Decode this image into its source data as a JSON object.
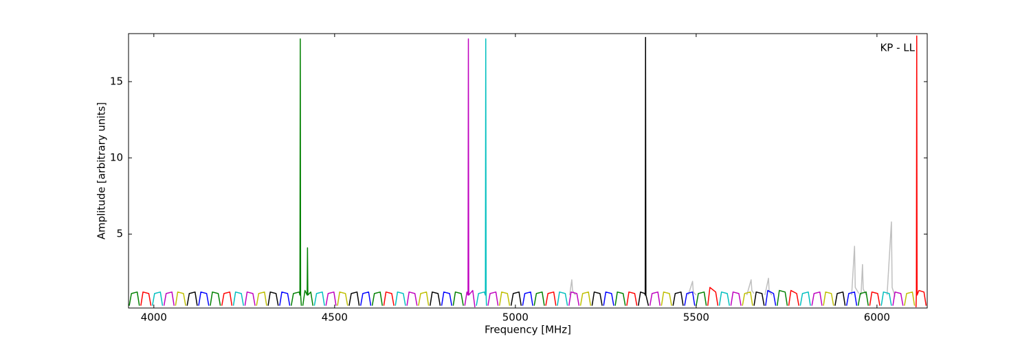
{
  "chart_data": {
    "type": "line",
    "xlabel": "Frequency [MHz]",
    "ylabel": "Amplitude [arbitrary units]",
    "annotation": "KP - LL",
    "xlim": [
      3930,
      6139
    ],
    "ylim": [
      0.15,
      18.15
    ],
    "xticks": [
      4000,
      4500,
      5000,
      5500,
      6000
    ],
    "yticks": [
      5,
      10,
      15
    ],
    "series": [
      {
        "color": "#bfbfbf",
        "x": [
          5150,
          5156,
          5158,
          5166,
          null,
          5478,
          5490,
          5492,
          5500,
          null,
          5640,
          5652,
          5654,
          5660,
          null,
          5690,
          5700,
          5702,
          5710,
          null,
          5930,
          5938,
          5940,
          5950,
          null,
          5956,
          5960,
          5962,
          5970,
          null,
          6028,
          6040,
          6042,
          6050
        ],
        "values": [
          1.0,
          2.0,
          1.3,
          1.0,
          null,
          1.0,
          1.9,
          1.2,
          1.0,
          null,
          1.0,
          2.0,
          1.3,
          1.1,
          null,
          1.0,
          2.1,
          1.2,
          1.0,
          null,
          1.0,
          4.2,
          1.5,
          1.1,
          null,
          1.0,
          3.0,
          1.4,
          1.0,
          null,
          1.0,
          5.8,
          1.5,
          0.9
        ]
      },
      {
        "color": "#0000ff",
        "x": [
          4124,
          4130,
          4146,
          4152,
          null,
          4348,
          4354,
          4370,
          4376,
          null,
          4572,
          4578,
          4594,
          4600,
          null,
          4796,
          4802,
          4818,
          4824,
          null,
          5020,
          5026,
          5042,
          5048,
          null,
          5244,
          5250,
          5266,
          5272,
          null,
          5468,
          5474,
          5490,
          5496,
          null,
          5692,
          5698,
          5714,
          5720,
          null,
          5916,
          5922,
          5938,
          5944
        ],
        "values": [
          0.3,
          1.2,
          1.1,
          0.3,
          null,
          0.3,
          1.2,
          1.1,
          0.3,
          null,
          0.3,
          1.1,
          1.2,
          0.3,
          null,
          0.3,
          1.2,
          1.1,
          0.3,
          null,
          0.3,
          1.1,
          1.2,
          0.3,
          null,
          0.3,
          1.2,
          1.1,
          0.3,
          null,
          0.3,
          1.1,
          1.2,
          0.3,
          null,
          0.3,
          1.3,
          1.1,
          0.3,
          null,
          0.3,
          1.1,
          1.2,
          0.3
        ]
      },
      {
        "color": "#008000",
        "x": [
          3932,
          3938,
          3954,
          3960,
          null,
          4156,
          4162,
          4178,
          4184,
          null,
          4380,
          4386,
          4402,
          4404,
          4405,
          4406,
          4408,
          null,
          4412,
          4418,
          4424,
          4425,
          4426,
          4434,
          4440,
          null,
          4604,
          4610,
          4626,
          4632,
          null,
          4828,
          4834,
          4850,
          4856,
          null,
          5052,
          5058,
          5074,
          5080,
          null,
          5276,
          5282,
          5298,
          5304,
          null,
          5500,
          5506,
          5522,
          5528,
          null,
          5724,
          5730,
          5746,
          5752,
          null,
          5948,
          5954,
          5970,
          5976
        ],
        "values": [
          0.3,
          1.1,
          1.2,
          0.3,
          null,
          0.3,
          1.2,
          1.1,
          0.3,
          null,
          0.3,
          1.1,
          1.2,
          1.0,
          17.8,
          1.0,
          0.3,
          null,
          0.3,
          1.3,
          1.0,
          4.1,
          1.0,
          1.2,
          0.3,
          null,
          0.3,
          1.1,
          1.2,
          0.3,
          null,
          0.3,
          1.2,
          1.1,
          0.3,
          null,
          0.3,
          1.1,
          1.2,
          0.3,
          null,
          0.3,
          1.2,
          1.1,
          0.3,
          null,
          0.3,
          1.1,
          1.2,
          0.3,
          null,
          0.3,
          1.3,
          1.2,
          0.3,
          null,
          0.3,
          1.1,
          1.2,
          0.3
        ]
      },
      {
        "color": "#ff0000",
        "x": [
          3964,
          3970,
          3986,
          3992,
          null,
          4188,
          4194,
          4210,
          4216,
          null,
          4636,
          4642,
          4658,
          4664,
          null,
          5084,
          5090,
          5106,
          5112,
          null,
          5308,
          5314,
          5330,
          5336,
          null,
          5532,
          5538,
          5554,
          5560,
          null,
          5756,
          5762,
          5778,
          5784,
          null,
          5980,
          5986,
          6002,
          6008,
          null,
          6108,
          6109,
          6110,
          6111,
          6116,
          6130,
          6136
        ],
        "values": [
          0.3,
          1.2,
          1.1,
          0.3,
          null,
          0.3,
          1.1,
          1.2,
          0.3,
          null,
          0.3,
          1.2,
          1.1,
          0.3,
          null,
          0.3,
          1.1,
          1.2,
          0.3,
          null,
          0.3,
          1.2,
          1.1,
          0.3,
          null,
          0.3,
          1.5,
          1.2,
          0.3,
          null,
          0.3,
          1.3,
          1.1,
          0.3,
          null,
          0.3,
          1.2,
          1.1,
          0.3,
          null,
          0.2,
          1.0,
          18.0,
          1.0,
          1.3,
          1.2,
          0.3
        ]
      },
      {
        "color": "#00bfbf",
        "x": [
          3996,
          4002,
          4018,
          4024,
          null,
          4220,
          4226,
          4242,
          4248,
          null,
          4444,
          4450,
          4466,
          4472,
          null,
          4668,
          4674,
          4690,
          4696,
          null,
          4892,
          4898,
          4914,
          4917,
          4918,
          4919,
          4920,
          null,
          5116,
          5122,
          5138,
          5144,
          null,
          5564,
          5570,
          5586,
          5592,
          null,
          5788,
          5794,
          5810,
          5816,
          null,
          6012,
          6018,
          6034,
          6040
        ],
        "values": [
          0.3,
          1.1,
          1.2,
          0.3,
          null,
          0.3,
          1.2,
          1.1,
          0.3,
          null,
          0.3,
          1.1,
          1.2,
          0.3,
          null,
          0.3,
          1.2,
          1.1,
          0.3,
          null,
          0.3,
          1.1,
          1.2,
          1.0,
          17.8,
          1.0,
          0.3,
          null,
          0.3,
          1.2,
          1.1,
          0.3,
          null,
          0.3,
          1.2,
          1.1,
          0.3,
          null,
          0.3,
          1.1,
          1.2,
          0.3,
          null,
          0.3,
          1.2,
          1.1,
          0.3
        ]
      },
      {
        "color": "#bf00bf",
        "x": [
          4028,
          4034,
          4050,
          4056,
          null,
          4252,
          4258,
          4274,
          4280,
          null,
          4476,
          4482,
          4498,
          4504,
          null,
          4700,
          4706,
          4722,
          4728,
          null,
          4860,
          4866,
          4869,
          4870,
          4871,
          4882,
          4888,
          null,
          4924,
          4930,
          4946,
          4952,
          null,
          5148,
          5154,
          5170,
          5176,
          null,
          5372,
          5378,
          5394,
          5400,
          null,
          5596,
          5602,
          5618,
          5624,
          null,
          5820,
          5826,
          5842,
          5848,
          null,
          6044,
          6050,
          6066,
          6072
        ],
        "values": [
          0.3,
          1.1,
          1.2,
          0.3,
          null,
          0.3,
          1.2,
          1.1,
          0.3,
          null,
          0.3,
          1.1,
          1.2,
          0.3,
          null,
          0.3,
          1.2,
          1.1,
          0.3,
          null,
          0.3,
          1.2,
          1.0,
          17.8,
          1.0,
          1.3,
          0.2,
          null,
          0.3,
          1.1,
          1.2,
          0.3,
          null,
          0.3,
          1.2,
          1.1,
          0.3,
          null,
          0.3,
          1.1,
          1.2,
          0.3,
          null,
          0.3,
          1.2,
          1.1,
          0.3,
          null,
          0.3,
          1.1,
          1.2,
          0.3,
          null,
          0.3,
          1.2,
          1.1,
          0.3
        ]
      },
      {
        "color": "#bfbf00",
        "x": [
          4060,
          4066,
          4082,
          4088,
          null,
          4284,
          4290,
          4306,
          4312,
          null,
          4508,
          4514,
          4530,
          4536,
          null,
          4732,
          4738,
          4754,
          4760,
          null,
          4956,
          4962,
          4978,
          4984,
          null,
          5180,
          5186,
          5202,
          5208,
          null,
          5404,
          5410,
          5426,
          5432,
          null,
          5628,
          5634,
          5650,
          5656,
          null,
          5852,
          5858,
          5874,
          5880,
          null,
          6076,
          6082,
          6098,
          6104
        ],
        "values": [
          0.3,
          1.2,
          1.1,
          0.3,
          null,
          0.3,
          1.1,
          1.2,
          0.3,
          null,
          0.3,
          1.2,
          1.1,
          0.3,
          null,
          0.3,
          1.1,
          1.2,
          0.3,
          null,
          0.3,
          1.2,
          1.1,
          0.3,
          null,
          0.3,
          1.1,
          1.2,
          0.3,
          null,
          0.3,
          1.2,
          1.1,
          0.3,
          null,
          0.3,
          1.1,
          1.2,
          0.3,
          null,
          0.3,
          1.2,
          1.1,
          0.3,
          null,
          0.3,
          1.1,
          1.2,
          0.3
        ]
      },
      {
        "color": "#000000",
        "x": [
          4092,
          4098,
          4114,
          4120,
          null,
          4316,
          4322,
          4338,
          4344,
          null,
          4540,
          4546,
          4562,
          4568,
          null,
          4764,
          4770,
          4786,
          4792,
          null,
          4988,
          4994,
          5010,
          5016,
          null,
          5212,
          5218,
          5234,
          5240,
          null,
          5340,
          5346,
          5358,
          5359,
          5360,
          5361,
          5368,
          null,
          5436,
          5442,
          5458,
          5464,
          null,
          5660,
          5666,
          5682,
          5688,
          null,
          5884,
          5890,
          5906,
          5912
        ],
        "values": [
          0.3,
          1.1,
          1.2,
          0.3,
          null,
          0.3,
          1.2,
          1.1,
          0.3,
          null,
          0.3,
          1.1,
          1.2,
          0.3,
          null,
          0.3,
          1.2,
          1.1,
          0.3,
          null,
          0.3,
          1.1,
          1.2,
          0.3,
          null,
          0.3,
          1.2,
          1.1,
          0.3,
          null,
          0.3,
          1.2,
          1.1,
          1.0,
          17.9,
          1.0,
          0.3,
          null,
          0.3,
          1.1,
          1.2,
          0.3,
          null,
          0.3,
          1.2,
          1.1,
          0.3,
          null,
          0.3,
          1.1,
          1.2,
          0.3
        ]
      }
    ]
  }
}
